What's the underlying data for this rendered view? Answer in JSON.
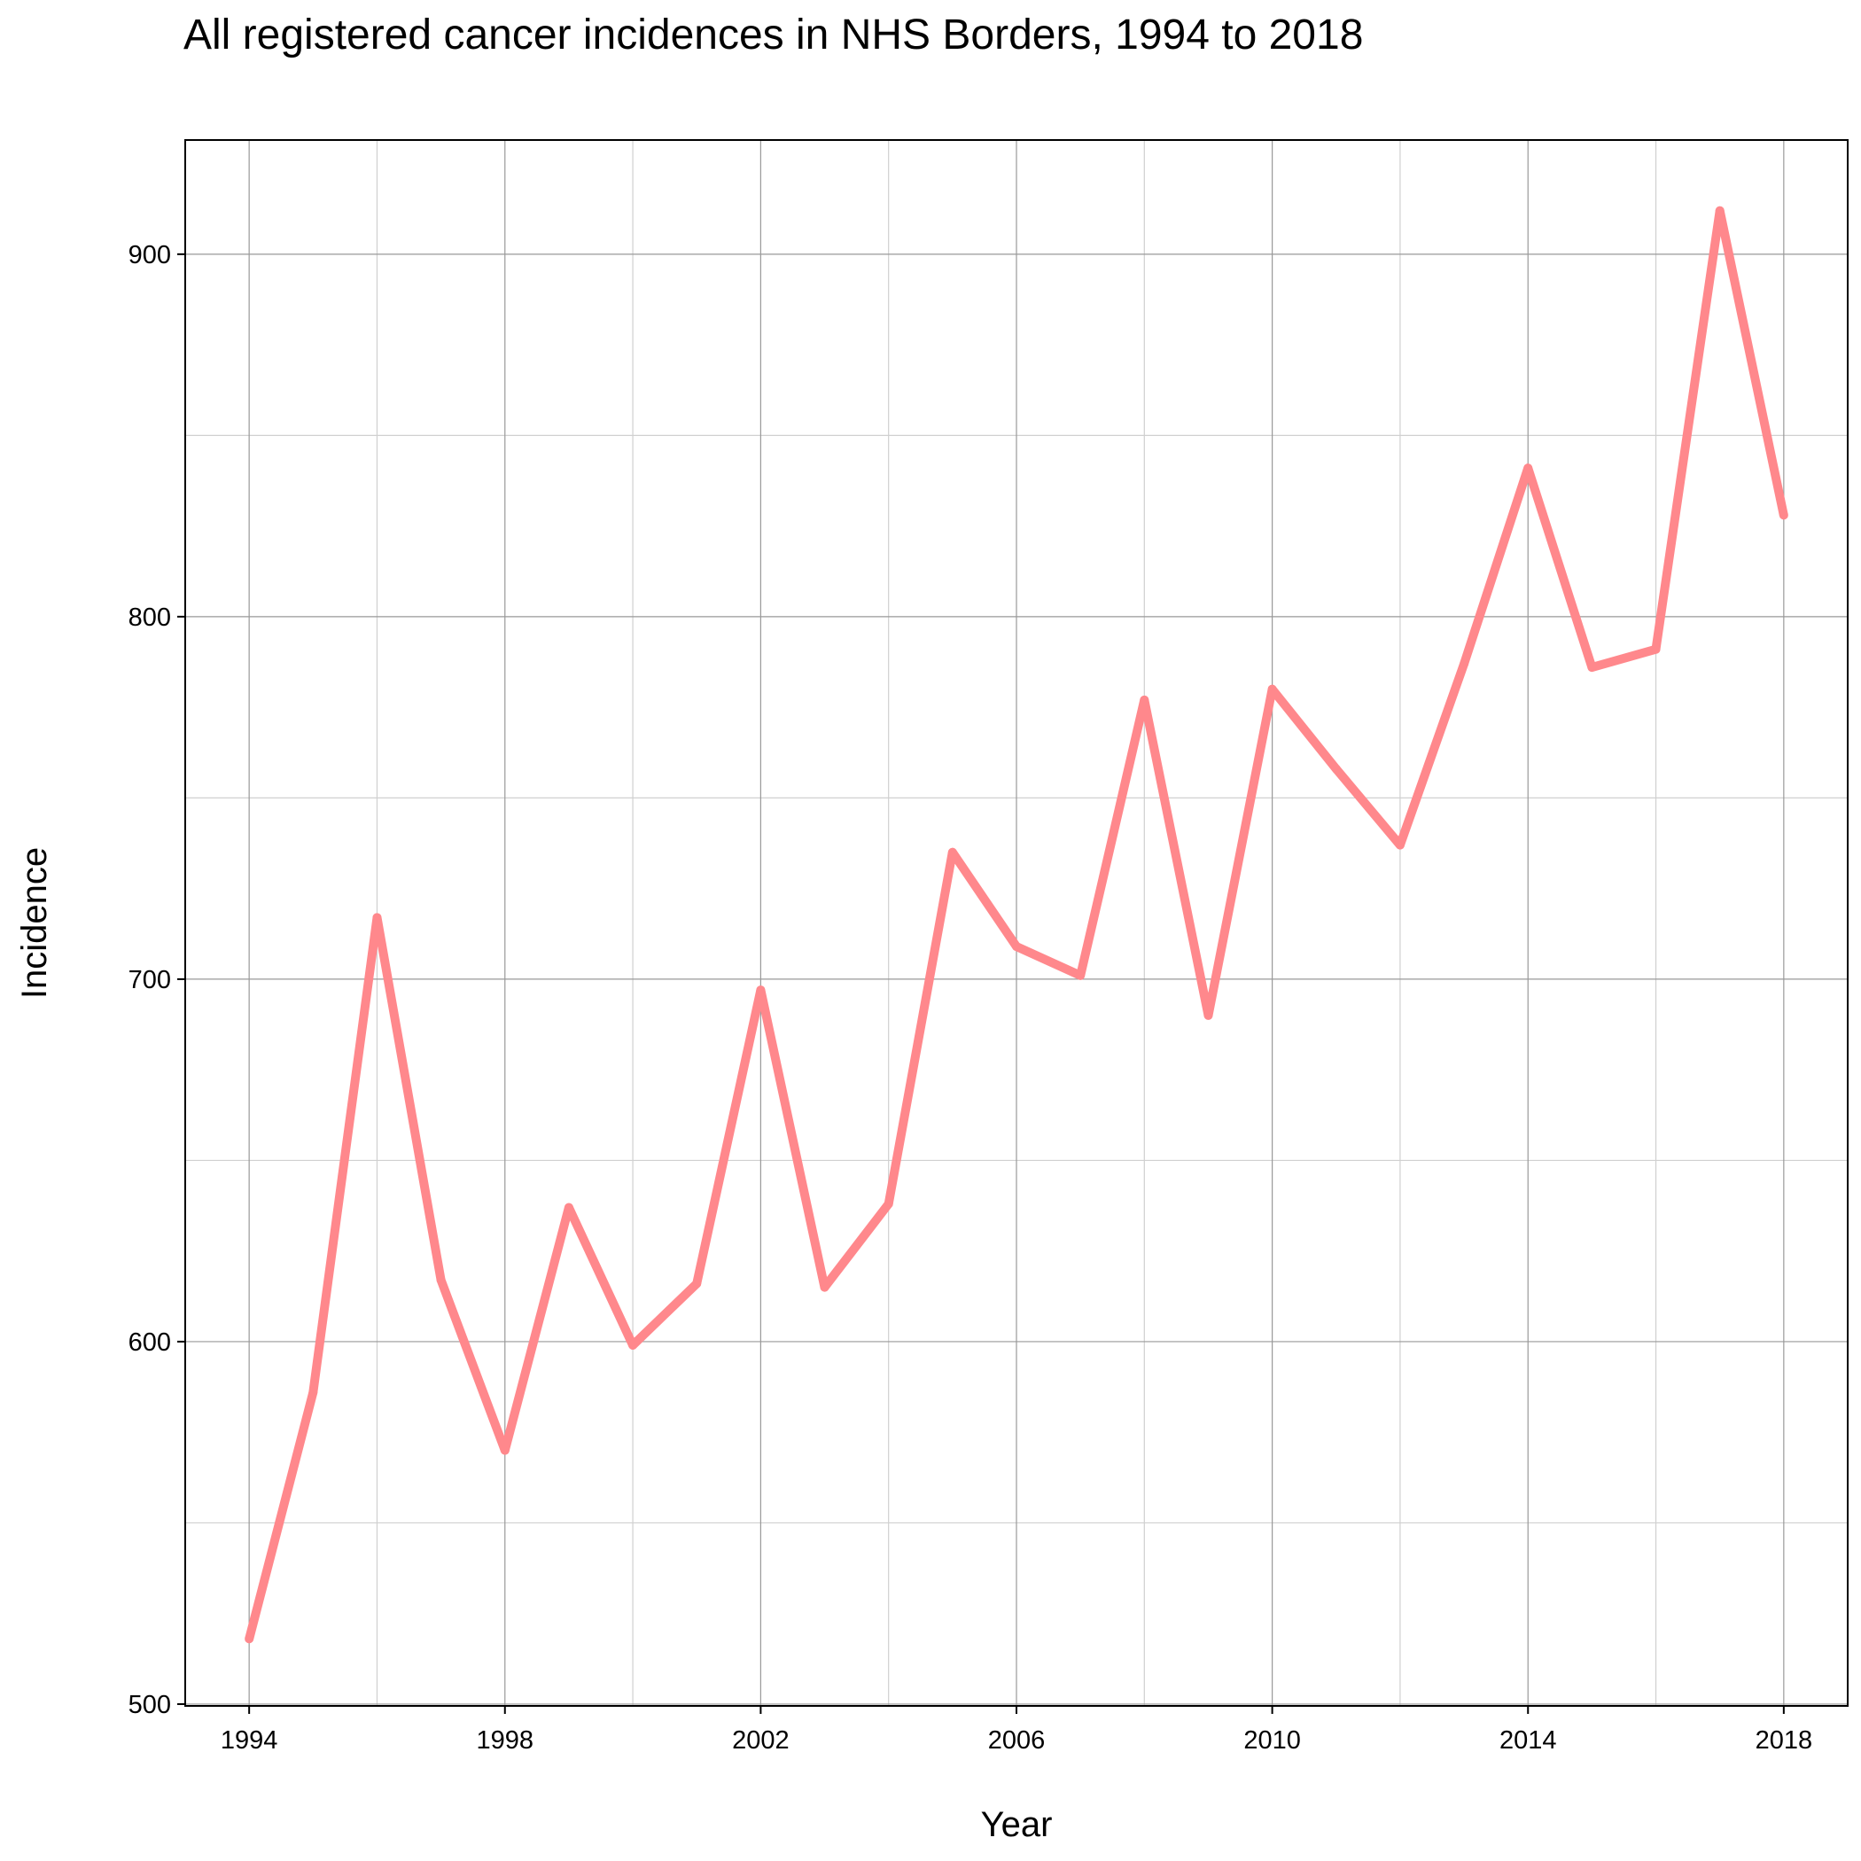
{
  "chart_data": {
    "type": "line",
    "title": "All registered cancer incidences in NHS Borders, 1994 to 2018",
    "xlabel": "Year",
    "ylabel": "Incidence",
    "x": [
      1994,
      1995,
      1996,
      1997,
      1998,
      1999,
      2000,
      2001,
      2002,
      2003,
      2004,
      2005,
      2006,
      2007,
      2008,
      2009,
      2010,
      2011,
      2012,
      2013,
      2014,
      2015,
      2016,
      2017,
      2018
    ],
    "series": [
      {
        "values": [
          518,
          586,
          717,
          617,
          570,
          637,
          599,
          616,
          697,
          615,
          638,
          735,
          709,
          701,
          777,
          690,
          780,
          758,
          737,
          787,
          841,
          786,
          791,
          912,
          828
        ],
        "color": "#FF888C"
      }
    ],
    "xlim": [
      1993.0,
      2019.0
    ],
    "ylim": [
      499.5,
      931.5
    ],
    "x_ticks": [
      "1994",
      "1998",
      "2002",
      "2006",
      "2010",
      "2014",
      "2018"
    ],
    "x_tick_values": [
      1994,
      1998,
      2002,
      2006,
      2010,
      2014,
      2018
    ],
    "y_ticks": [
      "500",
      "600",
      "700",
      "800",
      "900"
    ],
    "y_tick_values": [
      500,
      600,
      700,
      800,
      900
    ],
    "grid": true,
    "legend": "none"
  }
}
